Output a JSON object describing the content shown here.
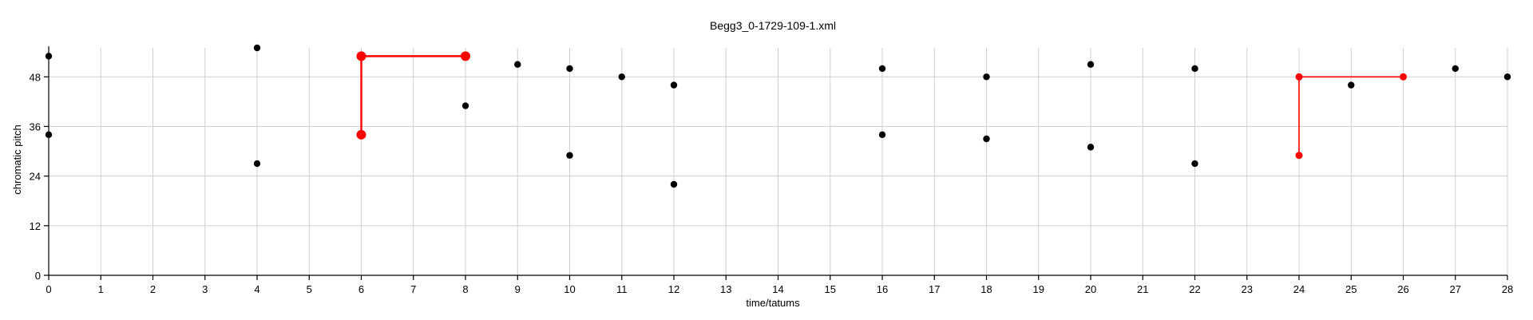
{
  "chart_data": {
    "type": "scatter",
    "title": "Begg3_0-1729-109-1.xml",
    "xlabel": "time/tatums",
    "ylabel": "chromatic pitch",
    "xlim": [
      0,
      28
    ],
    "ylim": [
      0,
      55
    ],
    "x_ticks": [
      0,
      1,
      2,
      3,
      4,
      5,
      6,
      7,
      8,
      9,
      10,
      11,
      12,
      13,
      14,
      15,
      16,
      17,
      18,
      19,
      20,
      21,
      22,
      23,
      24,
      25,
      26,
      27,
      28
    ],
    "y_ticks": [
      0,
      12,
      24,
      36,
      48
    ],
    "grid": true,
    "colors": {
      "points": "#000000",
      "highlight": "#ff0000",
      "grid": "#cfcfcf"
    },
    "points": [
      {
        "x": 0,
        "y": 53
      },
      {
        "x": 0,
        "y": 34
      },
      {
        "x": 4,
        "y": 55
      },
      {
        "x": 4,
        "y": 27
      },
      {
        "x": 8,
        "y": 41
      },
      {
        "x": 9,
        "y": 51
      },
      {
        "x": 10,
        "y": 50
      },
      {
        "x": 10,
        "y": 29
      },
      {
        "x": 11,
        "y": 48
      },
      {
        "x": 12,
        "y": 46
      },
      {
        "x": 12,
        "y": 22
      },
      {
        "x": 16,
        "y": 50
      },
      {
        "x": 16,
        "y": 34
      },
      {
        "x": 18,
        "y": 48
      },
      {
        "x": 18,
        "y": 33
      },
      {
        "x": 20,
        "y": 51
      },
      {
        "x": 20,
        "y": 31
      },
      {
        "x": 22,
        "y": 50
      },
      {
        "x": 22,
        "y": 27
      },
      {
        "x": 25,
        "y": 46
      },
      {
        "x": 27,
        "y": 50
      },
      {
        "x": 28,
        "y": 48
      }
    ],
    "highlight_paths": [
      {
        "points": [
          {
            "x": 6,
            "y": 34
          },
          {
            "x": 6,
            "y": 53
          },
          {
            "x": 8,
            "y": 53
          }
        ],
        "weight": "bold"
      },
      {
        "points": [
          {
            "x": 24,
            "y": 29
          },
          {
            "x": 24,
            "y": 48
          },
          {
            "x": 26,
            "y": 48
          }
        ],
        "weight": "normal"
      }
    ]
  }
}
